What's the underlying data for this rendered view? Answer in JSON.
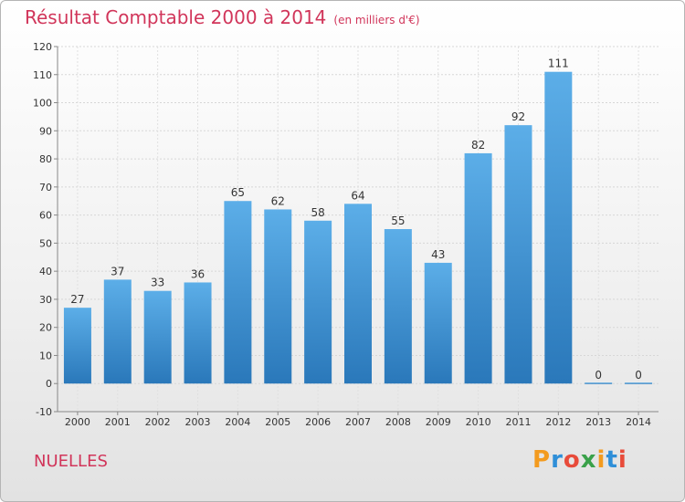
{
  "title": "Résultat Comptable 2000 à 2014",
  "subtitle": "(en milliers d'€)",
  "city": "NUELLES",
  "logo": {
    "letters": [
      "P",
      "r",
      "o",
      "x",
      "i",
      "t",
      "i"
    ],
    "colors": [
      "#f39b1f",
      "#2f8fd8",
      "#e84b3a",
      "#3aa14a",
      "#f39b1f",
      "#2f8fd8",
      "#e84b3a"
    ]
  },
  "chart_data": {
    "type": "bar",
    "categories": [
      "2000",
      "2001",
      "2002",
      "2003",
      "2004",
      "2005",
      "2006",
      "2007",
      "2008",
      "2009",
      "2010",
      "2011",
      "2012",
      "2013",
      "2014"
    ],
    "values": [
      27,
      37,
      33,
      36,
      65,
      62,
      58,
      64,
      55,
      43,
      82,
      92,
      111,
      0,
      0
    ],
    "ylim": [
      -10,
      120
    ],
    "yticks": [
      -10,
      0,
      10,
      20,
      30,
      40,
      50,
      60,
      70,
      80,
      90,
      100,
      110,
      120
    ],
    "grid": true,
    "bar_color_top": "#5caee8",
    "bar_color_bottom": "#2a78ba"
  }
}
